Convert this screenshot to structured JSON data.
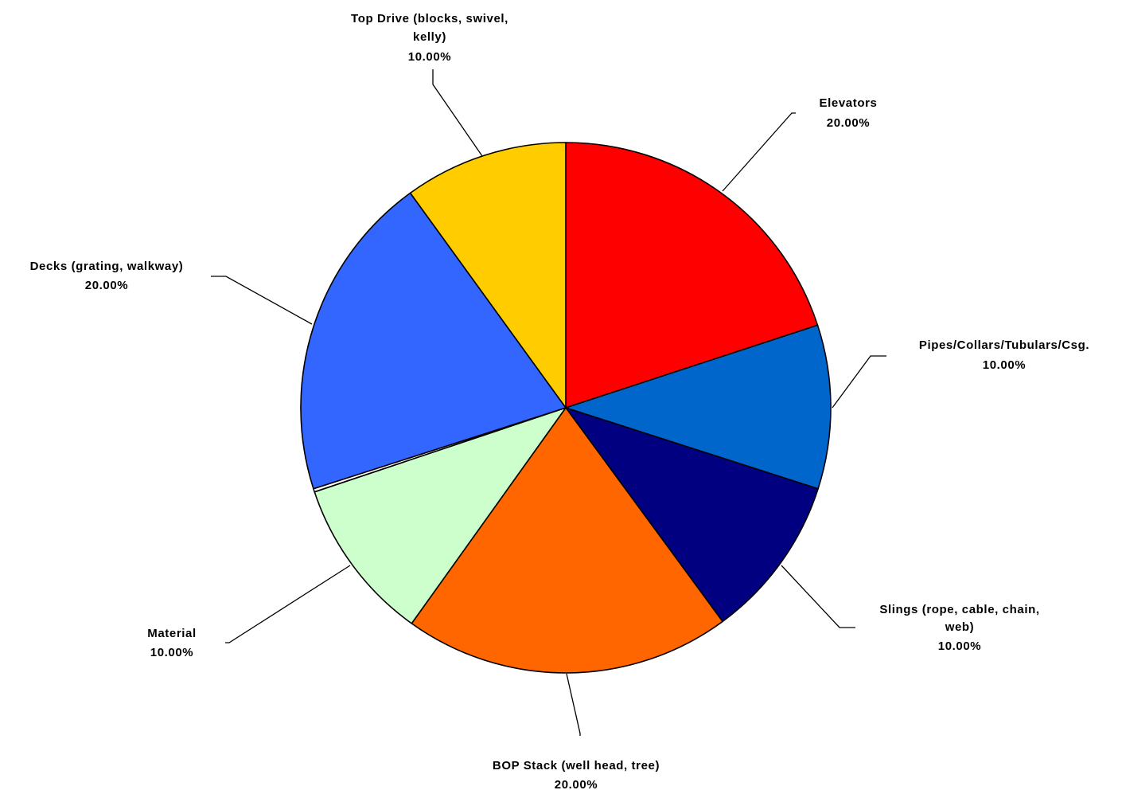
{
  "chart_data": {
    "type": "pie",
    "title": "",
    "start_angle_deg": 0,
    "direction": "clockwise",
    "slices": [
      {
        "name": "Elevators",
        "value": 20.0,
        "percent_label": "20.00%",
        "color": "#FF0000"
      },
      {
        "name": "Pipes/Collars/Tubulars/Csg.",
        "value": 10.0,
        "percent_label": "10.00%",
        "color": "#0066CC"
      },
      {
        "name": "Slings (rope, cable, chain, web)",
        "value": 10.0,
        "percent_label": "10.00%",
        "color": "#000080"
      },
      {
        "name": "BOP Stack (well head, tree)",
        "value": 20.0,
        "percent_label": "20.00%",
        "color": "#FF6600"
      },
      {
        "name": "Material",
        "value": 10.0,
        "percent_label": "10.00%",
        "color": "#CCFFCC"
      },
      {
        "name": "",
        "value": 0.2,
        "percent_label": "",
        "color": "#FFFFFF"
      },
      {
        "name": "Decks (grating, walkway)",
        "value": 20.0,
        "percent_label": "20.00%",
        "color": "#3366FF"
      },
      {
        "name": "Top Drive (blocks, swivel, kelly)",
        "value": 10.0,
        "percent_label": "10.00%",
        "color": "#FFCC00"
      }
    ],
    "legend": "none"
  }
}
